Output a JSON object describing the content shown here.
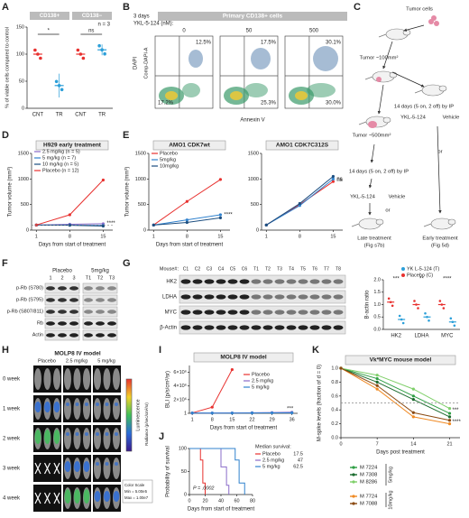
{
  "A": {
    "letter": "A",
    "groups": [
      "CD138+",
      "CD138−"
    ],
    "note": "n = 3",
    "ylabel": "% of viable cells compared to control",
    "ylim": [
      0,
      150
    ],
    "yticks": [
      0,
      50,
      100,
      150
    ],
    "categories": [
      "CNT",
      "TR",
      "CNT",
      "TR"
    ],
    "values": [
      100,
      42,
      100,
      108
    ],
    "errors": [
      0,
      22,
      0,
      10
    ],
    "colors": [
      "#e8312f",
      "#2b9fd9",
      "#e8312f",
      "#2b9fd9"
    ],
    "significance": [
      "*",
      "ns"
    ]
  },
  "B": {
    "letter": "B",
    "title": "Primary CD138+ cells",
    "duration": "3 days",
    "drug": "YKL-5-124 (nM):",
    "doses": [
      "0",
      "50",
      "500"
    ],
    "upper": [
      "12.5%",
      "17.5%",
      "30.1%"
    ],
    "lower": [
      "17.2%",
      "25.3%",
      "30.0%"
    ],
    "ylabel": "Comp-DAPI-A",
    "ylabel2": "DAPI",
    "xlabel": "Annexin V"
  },
  "C": {
    "letter": "C",
    "labels": [
      "Tumor cells",
      "Tumor ~100mm²",
      "14 days (5 on, 2 off) by IP",
      "YKL-5-124",
      "Vehicle",
      "Tumor ~500mm²",
      "or",
      "14 days (5 on, 2 off) by IP",
      "YKL-5-124",
      "Vehicle",
      "or",
      "Late treatment",
      "(Fig s7b)",
      "Early treatment",
      "(Fig 5d)"
    ]
  },
  "D": {
    "letter": "D",
    "title": "H929 early treatment",
    "xlabel": "Days from start of treatment",
    "ylabel": "Tumor volume (mm³)",
    "x": [
      1,
      8,
      15
    ],
    "xlim": [
      0,
      17
    ],
    "xticks": [
      1,
      8,
      15
    ],
    "ylim": [
      0,
      1500
    ],
    "yticks": [
      0,
      500,
      1000,
      1500
    ],
    "series": [
      {
        "name": "2.5 mg/kg (n = 5)",
        "color": "#8a6cc9",
        "values": [
          100,
          115,
          125
        ]
      },
      {
        "name": "5 mg/kg (n = 7)",
        "color": "#3182ce",
        "values": [
          100,
          100,
          90
        ]
      },
      {
        "name": "10 mg/kg (n = 5)",
        "color": "#1c4e80",
        "values": [
          100,
          95,
          80
        ]
      },
      {
        "name": "Placebo (n = 12)",
        "color": "#e8312f",
        "values": [
          100,
          300,
          980
        ]
      }
    ],
    "annotations": [
      "****"
    ]
  },
  "E": {
    "letter": "E",
    "charts": [
      {
        "title": "AMO1 CDK7wt",
        "xlabel": "Days from start of treatment",
        "ylabel": "Tumor volume (mm³)",
        "x": [
          1,
          8,
          15
        ],
        "xlim": [
          0,
          17
        ],
        "xticks": [
          1,
          8,
          15
        ],
        "ylim": [
          0,
          1500
        ],
        "yticks": [
          0,
          500,
          1000,
          1500
        ],
        "series": [
          {
            "name": "Placebo",
            "color": "#e8312f",
            "values": [
              100,
              560,
              990
            ]
          },
          {
            "name": "5mg/kg",
            "color": "#3182ce",
            "values": [
              100,
              200,
              300
            ]
          },
          {
            "name": "10mg/kg",
            "color": "#1c4e80",
            "values": [
              100,
              150,
              240
            ]
          }
        ],
        "annotations": [
          "****"
        ]
      },
      {
        "title": "AMO1 CDK7C312S",
        "x": [
          1,
          8,
          15
        ],
        "xlim": [
          0,
          17
        ],
        "xticks": [
          1,
          8,
          15
        ],
        "ylim": [
          0,
          1500
        ],
        "yticks": [
          0,
          500,
          1000,
          1500
        ],
        "series": [
          {
            "name": "Placebo",
            "color": "#e8312f",
            "values": [
              100,
              500,
              950
            ]
          },
          {
            "name": "5mg/kg",
            "color": "#3182ce",
            "values": [
              100,
              480,
              1000
            ]
          },
          {
            "name": "10mg/kg",
            "color": "#1c4e80",
            "values": [
              100,
              520,
              1050
            ]
          }
        ],
        "annotations": [
          "ns",
          "ns"
        ]
      }
    ]
  },
  "F": {
    "letter": "F",
    "groups": [
      "Placebo",
      "5mg/kg"
    ],
    "lanes": [
      "1",
      "2",
      "3",
      "T1",
      "T2",
      "T3"
    ],
    "rows": [
      "p-Rb (S780)",
      "p-Rb (S795)",
      "p-Rb (S807/811)",
      "Rb",
      "Actin"
    ]
  },
  "G": {
    "letter": "G",
    "lane_label": "Mouse#:",
    "lanes": [
      "C1",
      "C2",
      "C3",
      "C4",
      "C5",
      "C6",
      "T1",
      "T2",
      "T3",
      "T4",
      "T5",
      "T6",
      "T7",
      "T8"
    ],
    "rows": [
      "HK2",
      "LDHA",
      "MYC",
      "β-Actin"
    ],
    "chart": {
      "ylabel": "B-actin ratio",
      "categories": [
        "HK2",
        "LDHA",
        "MYC"
      ],
      "ylim": [
        0,
        2
      ],
      "yticks": [
        {
          "value": 0,
          "label": "0.0"
        },
        0.5,
        {
          "value": 1,
          "label": "1.0"
        },
        1.5,
        {
          "value": 2,
          "label": "2.0"
        }
      ],
      "series": [
        {
          "name": "YK L-5-124 (T)",
          "color": "#2b9fd9",
          "values": [
            0.4,
            0.5,
            0.3
          ]
        },
        {
          "name": "Placebo (C)",
          "color": "#e8312f",
          "values": [
            1.1,
            1.0,
            1.0
          ]
        }
      ],
      "annotations": [
        "***",
        "**",
        "****"
      ]
    }
  },
  "H": {
    "letter": "H",
    "title": "MOLP8 IV model",
    "columns": [
      "Placebo",
      "2.5 mg/kg",
      "5 mg/kg"
    ],
    "rows": [
      "0 week",
      "1 week",
      "2 week",
      "3 week",
      "4 week"
    ],
    "scale_title": "Luminescence",
    "scale_units": "Radiance (p/sec/cm²/sr)",
    "scale_note": [
      "Color Scale",
      "Min = 5.00e5",
      "Max = 1.00e7"
    ]
  },
  "I": {
    "letter": "I",
    "title": "MOLP8 IV model",
    "xlabel": "Days from start of treatment",
    "ylabel": "BLI (p/s/cm²/sr)",
    "x": [
      1,
      8,
      15,
      22,
      29,
      36
    ],
    "xlim": [
      0,
      38
    ],
    "xticks": [
      1,
      8,
      15,
      22,
      29,
      36
    ],
    "ylim": [
      0,
      7000000
    ],
    "yticks": [
      1,
      {
        "value": 2000000,
        "label": "2×10⁶"
      },
      {
        "value": 4000000,
        "label": "4×10⁶"
      },
      {
        "value": 6000000,
        "label": "6×10⁶"
      }
    ],
    "series": [
      {
        "name": "Placebo",
        "color": "#e8312f",
        "values": [
          60000,
          900000,
          6400000,
          null,
          null,
          null
        ]
      },
      {
        "name": "2.5 mg/kg",
        "color": "#8a6cc9",
        "values": [
          50000,
          50000,
          60000,
          80000,
          110000,
          160000
        ]
      },
      {
        "name": "5 mg/kg",
        "color": "#3182ce",
        "values": [
          50000,
          40000,
          40000,
          50000,
          60000,
          70000
        ]
      }
    ],
    "annotations": [
      "***"
    ]
  },
  "J": {
    "letter": "J",
    "xlabel": "Days from start of treatment",
    "ylabel": "Probability of survival",
    "step": true,
    "xlim": [
      0,
      80
    ],
    "xticks": [
      0,
      20,
      40,
      60,
      80
    ],
    "ylim": [
      0,
      100
    ],
    "yticks": [
      0,
      50,
      100
    ],
    "series": [
      {
        "name": "Placebo",
        "color": "#e8312f",
        "x": [
          0,
          14,
          17,
          20
        ],
        "values": [
          100,
          75,
          25,
          0
        ]
      },
      {
        "name": "2.5 mg/kg",
        "color": "#8a6cc9",
        "x": [
          0,
          40,
          47,
          50
        ],
        "values": [
          100,
          60,
          20,
          0
        ]
      },
      {
        "name": "5 mg/kg",
        "color": "#3182ce",
        "x": [
          0,
          58,
          63,
          70
        ],
        "values": [
          100,
          75,
          25,
          0
        ]
      }
    ],
    "legend_title": "Median survival:",
    "medians": [
      17.5,
      47,
      62.5
    ],
    "p_value": "P = .0002"
  },
  "K": {
    "letter": "K",
    "title": "Vk*MYC mouse model",
    "xlabel": "Days post treatment",
    "ylabel": "M-spike levels (fraction of d = 0)",
    "x": [
      0,
      7,
      14,
      21
    ],
    "xlim": [
      0,
      23
    ],
    "xticks": [
      0,
      7,
      14,
      21
    ],
    "ylim": [
      0,
      1
    ],
    "yticks": [
      {
        "value": 0,
        "label": "0.0"
      },
      0.2,
      0.4,
      0.6,
      0.8,
      {
        "value": 1,
        "label": "1.0"
      }
    ],
    "series": [
      {
        "name": "M 7224",
        "color": "#2e9e44",
        "values": [
          1,
          0.85,
          0.6,
          0.35
        ]
      },
      {
        "name": "M 7308",
        "color": "#1b6b2e",
        "values": [
          1,
          0.8,
          0.55,
          0.3
        ]
      },
      {
        "name": "M 8286",
        "color": "#7fcf6a",
        "values": [
          1,
          0.9,
          0.7,
          0.42
        ]
      },
      {
        "name": "M 7724",
        "color": "#f08a24",
        "values": [
          1,
          0.7,
          0.3,
          0.2
        ]
      },
      {
        "name": "M 7088",
        "color": "#8b4a12",
        "values": [
          1,
          0.75,
          0.36,
          0.25
        ]
      }
    ],
    "groups": [
      "5mg/kg",
      "10mg/kg"
    ],
    "annotations": [
      "***",
      "****"
    ]
  }
}
